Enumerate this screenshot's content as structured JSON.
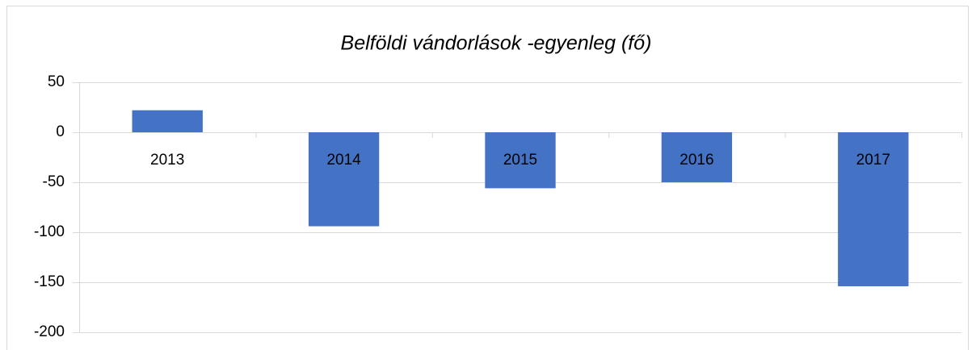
{
  "chart_data": {
    "type": "bar",
    "title": "Belföldi vándorlások -egyenleg (fő)",
    "categories": [
      "2013",
      "2014",
      "2015",
      "2016",
      "2017"
    ],
    "values": [
      22,
      -94,
      -56,
      -50,
      -154
    ],
    "color": "#4472c4",
    "ylim": [
      -200,
      50
    ],
    "yticks": [
      -200,
      -150,
      -100,
      -50,
      0,
      50
    ],
    "grid": true
  }
}
